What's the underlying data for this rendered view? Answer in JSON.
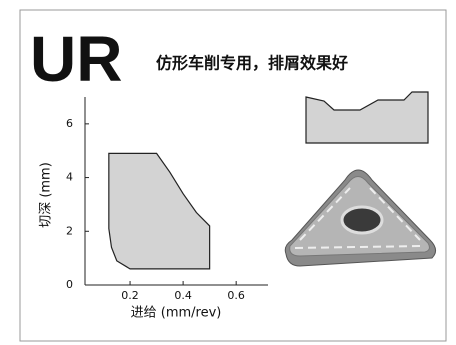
{
  "chart_data": {
    "type": "region",
    "title": "UR",
    "subtitle": "仿形车削专用，排屑效果好",
    "xlabel": "进给 (mm/rev)",
    "ylabel": "切深 (mm)",
    "x": [
      0.12,
      0.3,
      0.35,
      0.4,
      0.45,
      0.5,
      0.5,
      0.2,
      0.15,
      0.13,
      0.12
    ],
    "y": [
      4.9,
      4.9,
      4.2,
      3.4,
      2.7,
      2.2,
      0.6,
      0.6,
      0.9,
      1.4,
      2.1
    ],
    "color": "#d3d3d3",
    "xlim": [
      0,
      0.72
    ],
    "ylim": [
      0,
      7
    ],
    "xticks": [
      0.2,
      0.4,
      0.6
    ],
    "yticks": [
      0,
      2,
      4,
      6
    ]
  }
}
